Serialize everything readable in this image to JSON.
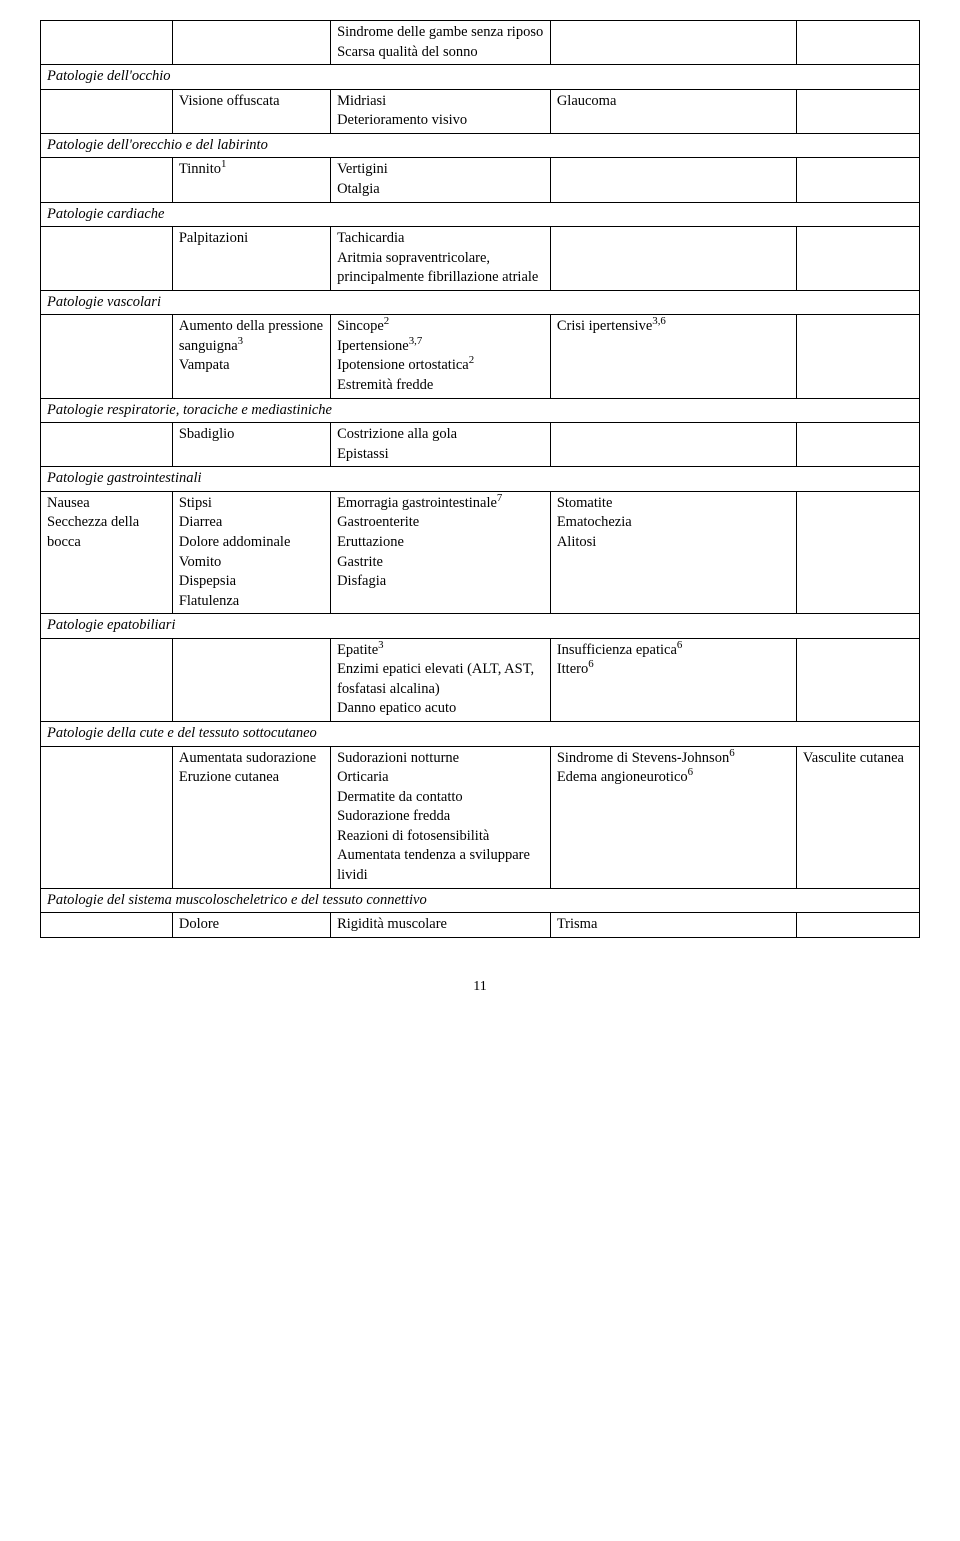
{
  "rows": [
    {
      "type": "data",
      "c1": "",
      "c2": "",
      "c3": "Sindrome delle gambe senza riposo\nScarsa qualità del sonno",
      "c4": "",
      "c5": ""
    },
    {
      "type": "section",
      "label": "Patologie dell'occhio"
    },
    {
      "type": "data",
      "c1": "",
      "c2": "Visione offuscata",
      "c3": "Midriasi\nDeterioramento visivo",
      "c4": "Glaucoma",
      "c5": ""
    },
    {
      "type": "section",
      "label": "Patologie dell'orecchio e del labirinto"
    },
    {
      "type": "data",
      "c1": "",
      "c2": "Tinnito",
      "c2_sup": "1",
      "c3": "Vertigini\nOtalgia",
      "c4": "",
      "c5": ""
    },
    {
      "type": "section",
      "label": "Patologie cardiache"
    },
    {
      "type": "data",
      "c1": "",
      "c2": "Palpitazioni",
      "c3": "Tachicardia\nAritmia sopraventricolare, principalmente fibrillazione atriale",
      "c4": "",
      "c5": ""
    },
    {
      "type": "section",
      "label": "Patologie vascolari"
    },
    {
      "type": "data",
      "c1": "",
      "c2_html": "Aumento della pressione sanguigna<sup>3</sup>\nVampata",
      "c3_html": "Sincope<sup>2</sup>\nIpertensione<sup>3,7</sup>\nIpotensione ortostatica<sup>2</sup>\nEstremità fredde",
      "c4_html": "Crisi ipertensive<sup>3,6</sup>",
      "c5": ""
    },
    {
      "type": "section",
      "label": "Patologie respiratorie, toraciche e mediastiniche"
    },
    {
      "type": "data",
      "c1": "",
      "c2": "Sbadiglio",
      "c3": "Costrizione alla gola\nEpistassi",
      "c4": "",
      "c5": ""
    },
    {
      "type": "section",
      "label": "Patologie gastrointestinali"
    },
    {
      "type": "data",
      "c1": "Nausea\nSecchezza della bocca",
      "c2": "Stipsi\nDiarrea\nDolore addominale\nVomito\nDispepsia\nFlatulenza",
      "c3_html": "Emorragia gastrointestinale<sup>7</sup>\nGastroenterite\nEruttazione\nGastrite\nDisfagia",
      "c4": "Stomatite\nEmatochezia\nAlitosi",
      "c5": ""
    },
    {
      "type": "section",
      "label": "Patologie epatobiliari"
    },
    {
      "type": "data",
      "c1": "",
      "c2": "",
      "c3_html": "Epatite<sup>3</sup>\nEnzimi epatici elevati (ALT, AST, fosfatasi alcalina)\nDanno epatico acuto",
      "c4_html": "Insufficienza epatica<sup>6</sup>\nIttero<sup>6</sup>",
      "c5": ""
    },
    {
      "type": "section",
      "label": "Patologie della cute e del tessuto sottocutaneo"
    },
    {
      "type": "data",
      "c1": "",
      "c2": "Aumentata sudorazione\nEruzione cutanea",
      "c3": "Sudorazioni notturne\nOrticaria\nDermatite da contatto\nSudorazione fredda\nReazioni di fotosensibilità\nAumentata tendenza a sviluppare lividi",
      "c4_html": "Sindrome di Stevens-Johnson<sup>6</sup>\nEdema angioneurotico<sup>6</sup>",
      "c5": "Vasculite cutanea"
    },
    {
      "type": "section",
      "label": "Patologie del sistema muscoloscheletrico e del tessuto connettivo"
    },
    {
      "type": "data",
      "c1": "",
      "c2": "Dolore",
      "c3": "Rigidità muscolare",
      "c4": "Trisma",
      "c5": ""
    }
  ],
  "pageNumber": "11"
}
